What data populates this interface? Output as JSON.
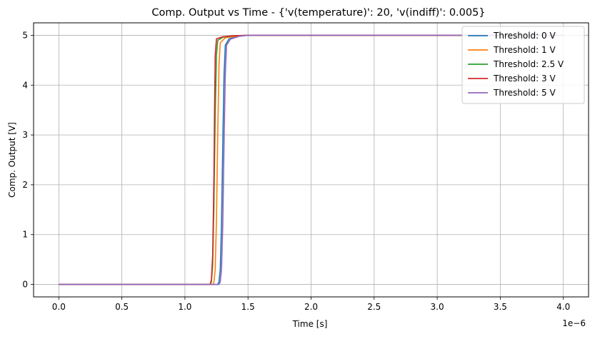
{
  "chart_data": {
    "type": "line",
    "title": "Comp. Output vs Time - {'v(temperature)': 20, 'v(indiff)': 0.005}",
    "xlabel": "Time [s]",
    "ylabel": "Comp. Output [V]",
    "x_offset_label": "1e−6",
    "xlim": [
      -2e-07,
      4.2e-06
    ],
    "ylim": [
      -0.25,
      5.25
    ],
    "xticks": [
      0,
      5e-07,
      1e-06,
      1.5e-06,
      2e-06,
      2.5e-06,
      3e-06,
      3.5e-06,
      4e-06
    ],
    "xtick_labels": [
      "0.0",
      "0.5",
      "1.0",
      "1.5",
      "2.0",
      "2.5",
      "3.0",
      "3.5",
      "4.0"
    ],
    "yticks": [
      0,
      1,
      2,
      3,
      4,
      5
    ],
    "ytick_labels": [
      "0",
      "1",
      "2",
      "3",
      "4",
      "5"
    ],
    "grid": true,
    "legend_position": "top-right",
    "series": [
      {
        "name": "Threshold: 0 V",
        "color": "#1f77b4",
        "x": [
          0,
          1.26e-06,
          1.27e-06,
          1.28e-06,
          1.29e-06,
          1.3e-06,
          1.31e-06,
          1.32e-06,
          1.35e-06,
          1.42e-06,
          1.5e-06,
          4e-06
        ],
        "y": [
          0,
          0,
          0.05,
          0.3,
          1.2,
          2.8,
          4.2,
          4.8,
          4.93,
          4.98,
          5.0,
          5.0
        ]
      },
      {
        "name": "Threshold: 1 V",
        "color": "#ff7f0e",
        "x": [
          0,
          1.22e-06,
          1.23e-06,
          1.24e-06,
          1.25e-06,
          1.26e-06,
          1.27e-06,
          1.28e-06,
          1.32e-06,
          1.4e-06,
          1.5e-06,
          4e-06
        ],
        "y": [
          0,
          0,
          0.05,
          0.3,
          1.3,
          3.0,
          4.4,
          4.85,
          4.95,
          4.98,
          5.0,
          5.0
        ]
      },
      {
        "name": "Threshold: 2.5 V",
        "color": "#2ca02c",
        "x": [
          0,
          1.2e-06,
          1.21e-06,
          1.22e-06,
          1.23e-06,
          1.24e-06,
          1.25e-06,
          1.26e-06,
          1.3e-06,
          1.38e-06,
          1.5e-06,
          4e-06
        ],
        "y": [
          0,
          0,
          0.05,
          0.4,
          1.6,
          3.4,
          4.6,
          4.9,
          4.96,
          4.99,
          5.0,
          5.0
        ]
      },
      {
        "name": "Threshold: 3 V",
        "color": "#d62728",
        "x": [
          0,
          1.2e-06,
          1.21e-06,
          1.22e-06,
          1.23e-06,
          1.235e-06,
          1.24e-06,
          1.25e-06,
          1.3e-06,
          1.38e-06,
          1.5e-06,
          4e-06
        ],
        "y": [
          0,
          0,
          0.1,
          0.6,
          2.2,
          3.6,
          4.6,
          4.93,
          4.97,
          4.99,
          5.0,
          5.0
        ]
      },
      {
        "name": "Threshold: 5 V",
        "color": "#9467bd",
        "x": [
          0,
          1.27e-06,
          1.28e-06,
          1.29e-06,
          1.3e-06,
          1.31e-06,
          1.32e-06,
          1.33e-06,
          1.36e-06,
          1.43e-06,
          1.5e-06,
          4e-06
        ],
        "y": [
          0,
          0,
          0.05,
          0.3,
          1.2,
          2.8,
          4.2,
          4.8,
          4.92,
          4.98,
          5.0,
          5.0
        ]
      }
    ]
  }
}
